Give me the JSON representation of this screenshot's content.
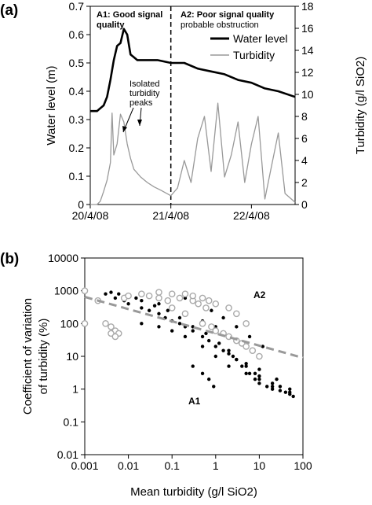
{
  "chart_data": [
    {
      "panel_label": "(a)",
      "type": "line",
      "x_axis": {
        "type": "date",
        "min": "2008-04-20",
        "max": "2008-04-22T13:00",
        "tick_labels": [
          "20/4/08",
          "21/4/08",
          "22/4/08"
        ],
        "tick_values": [
          "2008-04-20",
          "2008-04-21",
          "2008-04-22"
        ]
      },
      "y_left": {
        "label": "Water level (m)",
        "ylim": [
          0,
          0.7
        ],
        "ticks": [
          "0",
          "0.1",
          "0.2",
          "0.3",
          "0.4",
          "0.5",
          "0.6",
          "0.7"
        ]
      },
      "y_right": {
        "label": "Turbidity (g/l SiO2)",
        "ylim": [
          0,
          18
        ],
        "ticks": [
          "0",
          "2",
          "4",
          "6",
          "8",
          "10",
          "12",
          "14",
          "16",
          "18"
        ]
      },
      "divider_x": "2008-04-21",
      "annotations": {
        "a1_title": "A1: Good signal",
        "a1_sub": "quality",
        "a2_title": "A2: Poor signal quality",
        "a2_sub": "probable obstruction",
        "peaks_l1": "Isolated",
        "peaks_l2": "turbidity",
        "peaks_l3": "peaks"
      },
      "legend": {
        "placement": "top-right",
        "items": [
          "Water level",
          "Turbidity"
        ]
      },
      "series": [
        {
          "name": "Water level",
          "axis": "left",
          "color": "#000000",
          "x": [
            "2008-04-20T00:00",
            "2008-04-20T02:00",
            "2008-04-20T04:00",
            "2008-04-20T05:00",
            "2008-04-20T06:00",
            "2008-04-20T07:00",
            "2008-04-20T08:00",
            "2008-04-20T09:00",
            "2008-04-20T10:00",
            "2008-04-20T11:00",
            "2008-04-20T12:00",
            "2008-04-20T13:00",
            "2008-04-20T14:00",
            "2008-04-20T15:00",
            "2008-04-20T16:00",
            "2008-04-20T18:00",
            "2008-04-20T20:00",
            "2008-04-21T00:00",
            "2008-04-21T04:00",
            "2008-04-21T08:00",
            "2008-04-21T12:00",
            "2008-04-21T16:00",
            "2008-04-21T20:00",
            "2008-04-22T00:00",
            "2008-04-22T04:00",
            "2008-04-22T08:00",
            "2008-04-22T13:00"
          ],
          "y": [
            0.33,
            0.33,
            0.35,
            0.38,
            0.44,
            0.51,
            0.56,
            0.57,
            0.62,
            0.6,
            0.53,
            0.52,
            0.51,
            0.51,
            0.51,
            0.51,
            0.51,
            0.5,
            0.5,
            0.48,
            0.47,
            0.46,
            0.44,
            0.43,
            0.41,
            0.4,
            0.38
          ]
        },
        {
          "name": "Turbidity",
          "axis": "right",
          "color": "#999999",
          "x": [
            "2008-04-20T00:00",
            "2008-04-20T02:00",
            "2008-04-20T03:00",
            "2008-04-20T04:00",
            "2008-04-20T05:00",
            "2008-04-20T06:00",
            "2008-04-20T06:30",
            "2008-04-20T07:00",
            "2008-04-20T08:00",
            "2008-04-20T09:00",
            "2008-04-20T10:00",
            "2008-04-20T11:00",
            "2008-04-20T12:00",
            "2008-04-20T13:00",
            "2008-04-20T15:00",
            "2008-04-20T17:00",
            "2008-04-20T19:00",
            "2008-04-20T21:00",
            "2008-04-21T00:00",
            "2008-04-21T02:00",
            "2008-04-21T04:00",
            "2008-04-21T06:00",
            "2008-04-21T08:00",
            "2008-04-21T10:00",
            "2008-04-21T12:00",
            "2008-04-21T14:00",
            "2008-04-21T16:00",
            "2008-04-21T18:00",
            "2008-04-21T20:00",
            "2008-04-21T22:00",
            "2008-04-22T00:00",
            "2008-04-22T02:00",
            "2008-04-22T04:00",
            "2008-04-22T06:00",
            "2008-04-22T08:00",
            "2008-04-22T10:00",
            "2008-04-22T13:00"
          ],
          "y": [
            0,
            0,
            0.3,
            1.2,
            2.2,
            3.8,
            8.3,
            4.5,
            5.5,
            8.2,
            7.5,
            5.5,
            4.2,
            3.2,
            2.5,
            2.0,
            1.6,
            1.3,
            0.8,
            1.5,
            4.0,
            2.0,
            6.0,
            8.0,
            3.0,
            9.2,
            2.5,
            4.5,
            7.5,
            2.0,
            5.5,
            8.0,
            0.5,
            3.5,
            6.5,
            1.0,
            0.2
          ]
        }
      ]
    },
    {
      "panel_label": "(b)",
      "type": "scatter",
      "x_axis": {
        "label": "Mean turbidity (g/l SiO2)",
        "scale": "log",
        "xlim": [
          0.001,
          100
        ],
        "ticks": [
          "0.001",
          "0.01",
          "0.1",
          "1",
          "10",
          "100"
        ]
      },
      "y_axis": {
        "label_line1": "Coefficient of variation",
        "label_line2": "of turbidity (%)",
        "scale": "log",
        "ylim": [
          0.01,
          10000
        ],
        "ticks": [
          "0.01",
          "0.1",
          "1",
          "10",
          "100",
          "1000",
          "10000"
        ]
      },
      "region_labels": [
        "A1",
        "A2"
      ],
      "trend_line": {
        "style": "dashed",
        "color": "#999999",
        "x": [
          0.001,
          100
        ],
        "y": [
          650,
          9
        ]
      },
      "series": [
        {
          "marker": "filled-dot",
          "color": "#000000",
          "x": [
            0.003,
            0.005,
            0.008,
            0.01,
            0.02,
            0.03,
            0.05,
            0.07,
            0.1,
            0.15,
            0.2,
            0.3,
            0.5,
            0.7,
            1,
            1.5,
            2,
            3,
            5,
            8,
            10,
            20,
            30,
            50,
            0.05,
            0.1,
            0.2,
            0.5,
            1,
            2,
            5,
            0.02,
            0.05,
            0.1,
            0.2,
            0.5,
            1,
            2,
            5,
            10,
            20,
            0.3,
            0.5,
            0.7,
            0.9,
            2,
            3,
            4,
            6,
            8,
            10,
            15,
            20,
            30,
            40,
            50,
            60,
            0.01,
            0.02,
            0.04,
            0.08,
            0.15,
            0.3,
            0.6,
            1.2,
            2.5,
            5,
            10,
            25,
            50,
            0.2,
            0.4,
            0.8,
            1.5,
            3,
            6,
            12,
            0.004,
            0.006,
            0.009,
            0.015
          ],
          "y": [
            800,
            600,
            500,
            400,
            300,
            250,
            200,
            150,
            120,
            100,
            80,
            60,
            40,
            30,
            20,
            15,
            12,
            8,
            5,
            3,
            2.5,
            1.5,
            1.2,
            0.8,
            400,
            300,
            200,
            120,
            80,
            40,
            20,
            100,
            80,
            60,
            40,
            20,
            10,
            5,
            3,
            2,
            1.2,
            5,
            3,
            2,
            1.2,
            15,
            8,
            5,
            3,
            2,
            1.5,
            1.2,
            1,
            0.9,
            0.8,
            0.7,
            0.6,
            700,
            500,
            350,
            250,
            150,
            80,
            50,
            25,
            10,
            6,
            4,
            2,
            1,
            600,
            400,
            250,
            150,
            80,
            40,
            20,
            900,
            800,
            700,
            600
          ]
        },
        {
          "marker": "open-circle",
          "color": "#aaaaaa",
          "x": [
            0.001,
            0.001,
            0.002,
            0.003,
            0.004,
            0.005,
            0.006,
            0.008,
            0.01,
            0.02,
            0.03,
            0.05,
            0.08,
            0.1,
            0.15,
            0.2,
            0.3,
            0.4,
            0.5,
            0.6,
            0.8,
            1,
            1.5,
            2,
            3,
            4,
            5,
            7,
            10,
            0.05,
            0.1,
            0.2,
            0.3,
            0.5,
            0.7,
            1,
            2,
            3,
            5,
            0.004,
            0.005
          ],
          "y": [
            1000,
            100,
            500,
            100,
            80,
            60,
            50,
            600,
            700,
            800,
            700,
            600,
            500,
            300,
            600,
            200,
            500,
            400,
            100,
            300,
            80,
            60,
            50,
            40,
            30,
            25,
            20,
            15,
            10,
            900,
            800,
            800,
            700,
            600,
            500,
            400,
            300,
            200,
            100,
            50,
            40
          ]
        }
      ]
    }
  ]
}
